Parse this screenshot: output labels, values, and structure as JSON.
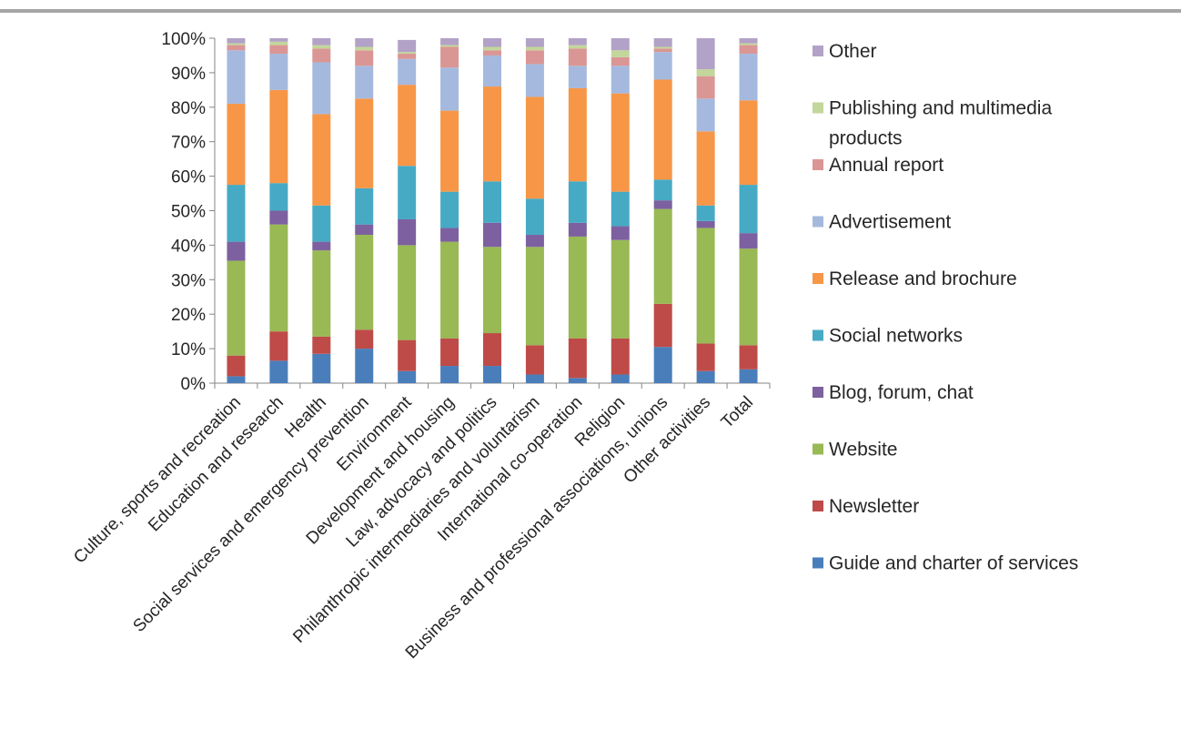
{
  "chart_data": {
    "type": "bar",
    "stacked": true,
    "percent": true,
    "title": "",
    "xlabel": "",
    "ylabel": "",
    "ylim": [
      0,
      100
    ],
    "yticks": [
      "0%",
      "10%",
      "20%",
      "30%",
      "40%",
      "50%",
      "60%",
      "70%",
      "80%",
      "90%",
      "100%"
    ],
    "grid": false,
    "legend_position": "right",
    "categories": [
      "Culture, sports and recreation",
      "Education and research",
      "Health",
      "Social services and emergency prevention",
      "Environment",
      "Development and housing",
      "Law, advocacy and politics",
      "Philanthropic intermediaries and voluntarism",
      "International co-operation",
      "Religion",
      "Business and professional associations, unions",
      "Other activities",
      "Total"
    ],
    "series": [
      {
        "name": "Guide and charter of services",
        "color": "#4a7ebb",
        "values": [
          2.0,
          6.5,
          8.5,
          10.0,
          3.5,
          5.0,
          5.0,
          2.5,
          1.5,
          2.5,
          10.5,
          3.5,
          4.0
        ]
      },
      {
        "name": "Newsletter",
        "color": "#be4b48",
        "values": [
          6.0,
          8.5,
          5.0,
          5.5,
          9.0,
          8.0,
          9.5,
          8.5,
          11.5,
          10.5,
          12.5,
          8.0,
          7.0
        ]
      },
      {
        "name": "Website",
        "color": "#98b954",
        "values": [
          27.5,
          31.0,
          25.0,
          27.5,
          27.5,
          28.0,
          25.0,
          28.5,
          29.5,
          28.5,
          27.5,
          33.5,
          28.0
        ]
      },
      {
        "name": "Blog, forum, chat",
        "color": "#7d60a0",
        "values": [
          5.5,
          4.0,
          2.5,
          3.0,
          7.5,
          4.0,
          7.0,
          3.5,
          4.0,
          4.0,
          2.5,
          2.0,
          4.5
        ]
      },
      {
        "name": "Social networks",
        "color": "#46aac5",
        "values": [
          16.5,
          8.0,
          10.5,
          10.5,
          15.5,
          10.5,
          12.0,
          10.5,
          12.0,
          10.0,
          6.0,
          4.5,
          14.0
        ]
      },
      {
        "name": "Release and brochure",
        "color": "#f79646",
        "values": [
          23.5,
          27.0,
          26.5,
          26.0,
          23.5,
          23.5,
          27.5,
          29.5,
          27.0,
          28.5,
          29.0,
          21.5,
          24.5
        ]
      },
      {
        "name": "Advertisement",
        "color": "#a5b9de",
        "values": [
          15.5,
          10.5,
          15.0,
          9.5,
          7.5,
          12.5,
          9.0,
          9.5,
          6.5,
          8.0,
          8.0,
          9.5,
          13.5
        ]
      },
      {
        "name": "Annual report",
        "color": "#da9694",
        "values": [
          1.5,
          2.5,
          4.0,
          4.5,
          1.5,
          6.0,
          1.5,
          4.0,
          5.0,
          2.5,
          1.0,
          6.5,
          2.5
        ]
      },
      {
        "name": "Publishing and multimedia products",
        "color": "#c3d69b",
        "values": [
          0.5,
          1.0,
          1.0,
          1.0,
          0.5,
          0.5,
          1.0,
          1.0,
          1.0,
          2.0,
          0.5,
          2.0,
          0.5
        ]
      },
      {
        "name": "Other",
        "color": "#b2a2c7",
        "values": [
          1.5,
          1.0,
          2.0,
          2.5,
          3.5,
          2.0,
          2.5,
          2.5,
          2.0,
          3.5,
          2.5,
          9.0,
          1.5
        ]
      }
    ]
  }
}
